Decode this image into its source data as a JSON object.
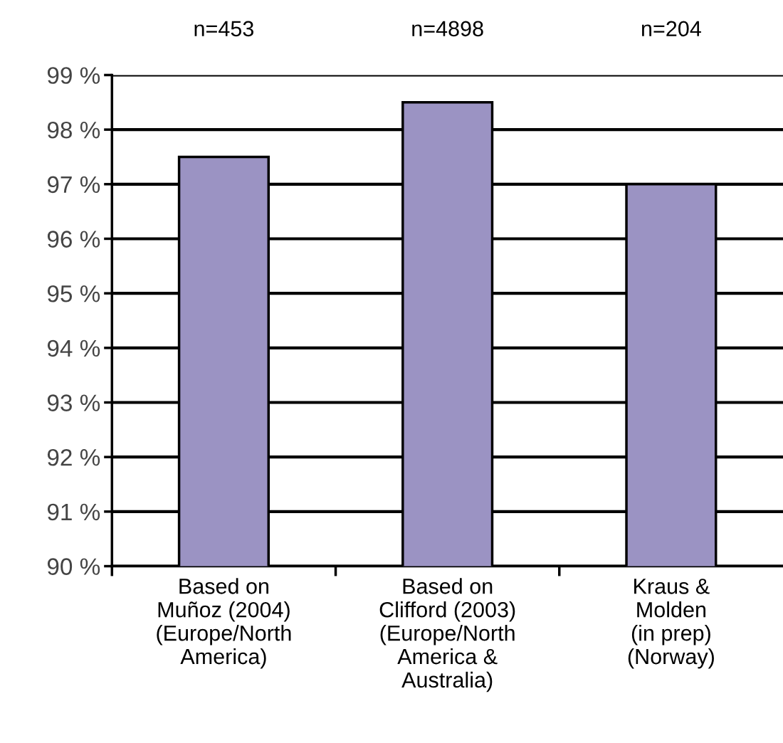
{
  "chart_data": {
    "type": "bar",
    "categories": [
      "Based on\nMuñoz (2004)\n(Europe/North\nAmerica)",
      "Based on\nClifford (2003)\n(Europe/North\nAmerica &\nAustralia)",
      "Kraus &\nMolden\n(in prep)\n(Norway)"
    ],
    "values": [
      97.5,
      98.5,
      97.0
    ],
    "color": "#9b93c3",
    "ylim": [
      90,
      99
    ],
    "yticks": [
      {
        "value": 90,
        "label": "90 %"
      },
      {
        "value": 91,
        "label": "91 %"
      },
      {
        "value": 92,
        "label": "92 %"
      },
      {
        "value": 93,
        "label": "93 %"
      },
      {
        "value": 94,
        "label": "94 %"
      },
      {
        "value": 95,
        "label": "95 %"
      },
      {
        "value": 96,
        "label": "96 %"
      },
      {
        "value": 97,
        "label": "97 %"
      },
      {
        "value": 98,
        "label": "98 %"
      },
      {
        "value": 99,
        "label": "99 %"
      }
    ],
    "grid": "y",
    "annotations": [
      "n=453",
      "n=4898",
      "n=204"
    ]
  }
}
